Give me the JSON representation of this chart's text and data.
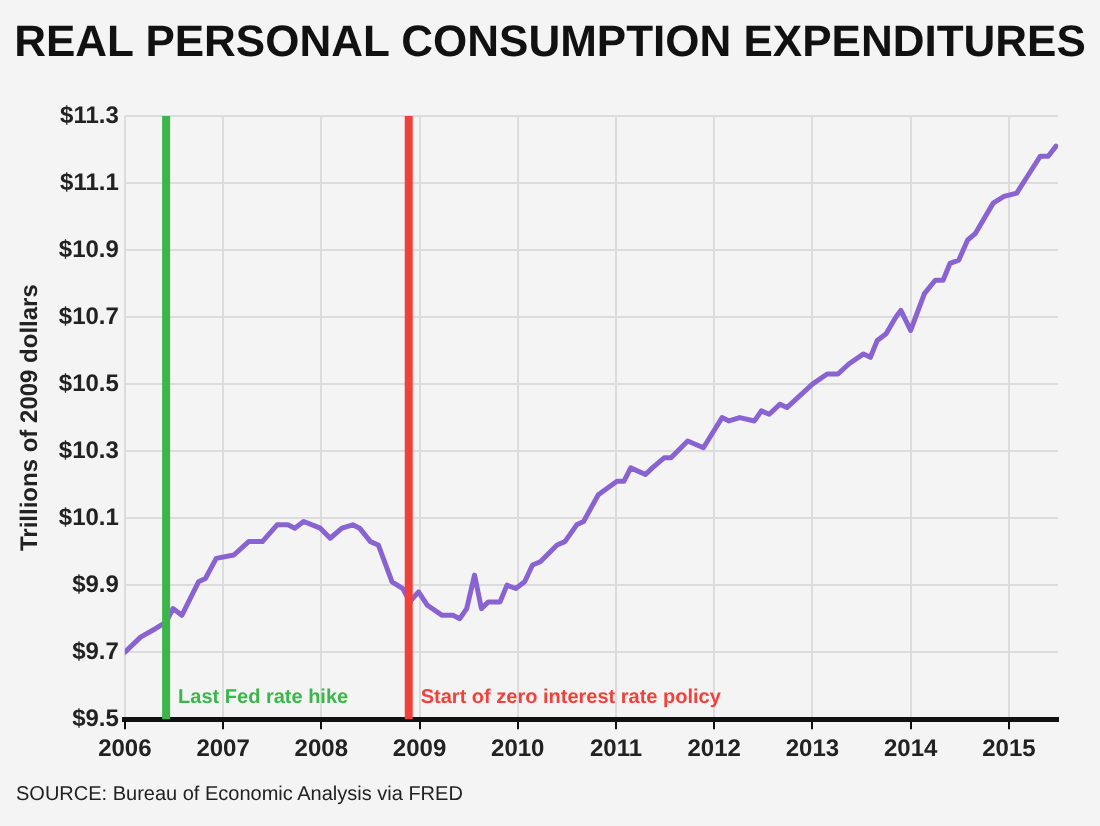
{
  "chart_data": {
    "type": "line",
    "title": "REAL PERSONAL CONSUMPTION EXPENDITURES",
    "ylabel": "Trillions of 2009 dollars",
    "annotations": [
      "SOURCE: Bureau of Economic Analysis via FRED"
    ],
    "x": [
      2006.0,
      2006.16,
      2006.31,
      2006.42,
      2006.49,
      2006.58,
      2006.75,
      2006.82,
      2006.93,
      2007.11,
      2007.26,
      2007.4,
      2007.55,
      2007.66,
      2007.73,
      2007.82,
      2007.99,
      2008.09,
      2008.21,
      2008.32,
      2008.39,
      2008.5,
      2008.58,
      2008.72,
      2008.83,
      2008.9,
      2008.99,
      2009.08,
      2009.23,
      2009.34,
      2009.41,
      2009.48,
      2009.56,
      2009.63,
      2009.7,
      2009.82,
      2009.89,
      2009.98,
      2010.07,
      2010.15,
      2010.23,
      2010.4,
      2010.48,
      2010.6,
      2010.67,
      2010.82,
      2011.01,
      2011.08,
      2011.15,
      2011.3,
      2011.37,
      2011.49,
      2011.56,
      2011.73,
      2011.89,
      2012.08,
      2012.15,
      2012.26,
      2012.41,
      2012.48,
      2012.56,
      2012.67,
      2012.74,
      2013.0,
      2013.15,
      2013.26,
      2013.37,
      2013.52,
      2013.59,
      2013.66,
      2013.75,
      2013.85,
      2013.9,
      2014.0,
      2014.14,
      2014.25,
      2014.33,
      2014.4,
      2014.49,
      2014.58,
      2014.66,
      2014.84,
      2014.95,
      2015.08,
      2015.21,
      2015.32,
      2015.4,
      2015.48
    ],
    "series": [
      {
        "color": "#8a63d2",
        "values": [
          9.7,
          9.745,
          9.77,
          9.79,
          9.83,
          9.81,
          9.91,
          9.92,
          9.98,
          9.99,
          10.03,
          10.03,
          10.08,
          10.08,
          10.07,
          10.09,
          10.07,
          10.04,
          10.07,
          10.08,
          10.07,
          10.03,
          10.02,
          9.91,
          9.89,
          9.85,
          9.88,
          9.84,
          9.81,
          9.81,
          9.8,
          9.83,
          9.93,
          9.83,
          9.85,
          9.85,
          9.9,
          9.89,
          9.91,
          9.96,
          9.97,
          10.02,
          10.03,
          10.08,
          10.09,
          10.17,
          10.21,
          10.21,
          10.25,
          10.23,
          10.25,
          10.28,
          10.28,
          10.33,
          10.31,
          10.4,
          10.39,
          10.4,
          10.39,
          10.42,
          10.41,
          10.44,
          10.43,
          10.5,
          10.53,
          10.53,
          10.56,
          10.59,
          10.58,
          10.63,
          10.65,
          10.7,
          10.72,
          10.66,
          10.77,
          10.81,
          10.81,
          10.86,
          10.87,
          10.93,
          10.95,
          11.04,
          11.06,
          11.07,
          11.13,
          11.18,
          11.18,
          11.21
        ]
      }
    ],
    "xlim": [
      2006,
      2015.5
    ],
    "xticks": [
      2006,
      2007,
      2008,
      2009,
      2010,
      2011,
      2012,
      2013,
      2014,
      2015
    ],
    "ylim": [
      9.5,
      11.3
    ],
    "yticks": [
      {
        "value": 9.5,
        "label": "$9.5"
      },
      {
        "value": 9.7,
        "label": "$9.7"
      },
      {
        "value": 9.9,
        "label": "$9.9"
      },
      {
        "value": 10.1,
        "label": "$10.1"
      },
      {
        "value": 10.3,
        "label": "$10.3"
      },
      {
        "value": 10.5,
        "label": "$10.5"
      },
      {
        "value": 10.7,
        "label": "$10.7"
      },
      {
        "value": 10.9,
        "label": "$10.9"
      },
      {
        "value": 11.1,
        "label": "$11.1"
      },
      {
        "value": 11.3,
        "label": "$11.3"
      }
    ],
    "ref_lines": [
      {
        "axis": "x",
        "value": 2006.42,
        "label": "Last Fed rate hike",
        "color": "#3cb54a"
      },
      {
        "axis": "x",
        "value": 2008.89,
        "label": "Start of zero interest rate policy",
        "color": "#f0413a"
      }
    ],
    "grid": true,
    "legend": false,
    "marker": "none",
    "line_style": "solid"
  }
}
